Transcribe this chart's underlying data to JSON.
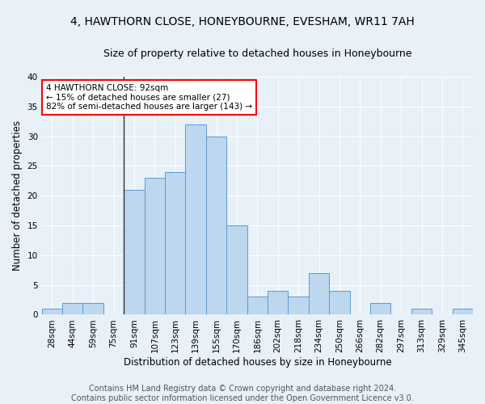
{
  "title1": "4, HAWTHORN CLOSE, HONEYBOURNE, EVESHAM, WR11 7AH",
  "title2": "Size of property relative to detached houses in Honeybourne",
  "xlabel": "Distribution of detached houses by size in Honeybourne",
  "ylabel": "Number of detached properties",
  "categories": [
    "28sqm",
    "44sqm",
    "59sqm",
    "75sqm",
    "91sqm",
    "107sqm",
    "123sqm",
    "139sqm",
    "155sqm",
    "170sqm",
    "186sqm",
    "202sqm",
    "218sqm",
    "234sqm",
    "250sqm",
    "266sqm",
    "282sqm",
    "297sqm",
    "313sqm",
    "329sqm",
    "345sqm"
  ],
  "values": [
    1,
    2,
    2,
    0,
    21,
    23,
    24,
    32,
    30,
    15,
    3,
    4,
    3,
    7,
    4,
    0,
    2,
    0,
    1,
    0,
    1
  ],
  "bar_color": "#BDD7EE",
  "bar_edge_color": "#5B9BD5",
  "highlight_index": 4,
  "highlight_line_color": "#303030",
  "annotation_text": "4 HAWTHORN CLOSE: 92sqm\n← 15% of detached houses are smaller (27)\n82% of semi-detached houses are larger (143) →",
  "annotation_box_color": "white",
  "annotation_box_edge_color": "red",
  "ylim": [
    0,
    40
  ],
  "yticks": [
    0,
    5,
    10,
    15,
    20,
    25,
    30,
    35,
    40
  ],
  "footer1": "Contains HM Land Registry data © Crown copyright and database right 2024.",
  "footer2": "Contains public sector information licensed under the Open Government Licence v3.0.",
  "bg_color": "#E8F0F8",
  "grid_color": "#FFFFFF",
  "title1_fontsize": 10,
  "title2_fontsize": 9,
  "xlabel_fontsize": 8.5,
  "ylabel_fontsize": 8.5,
  "tick_fontsize": 7.5,
  "annotation_fontsize": 7.5,
  "footer_fontsize": 7
}
